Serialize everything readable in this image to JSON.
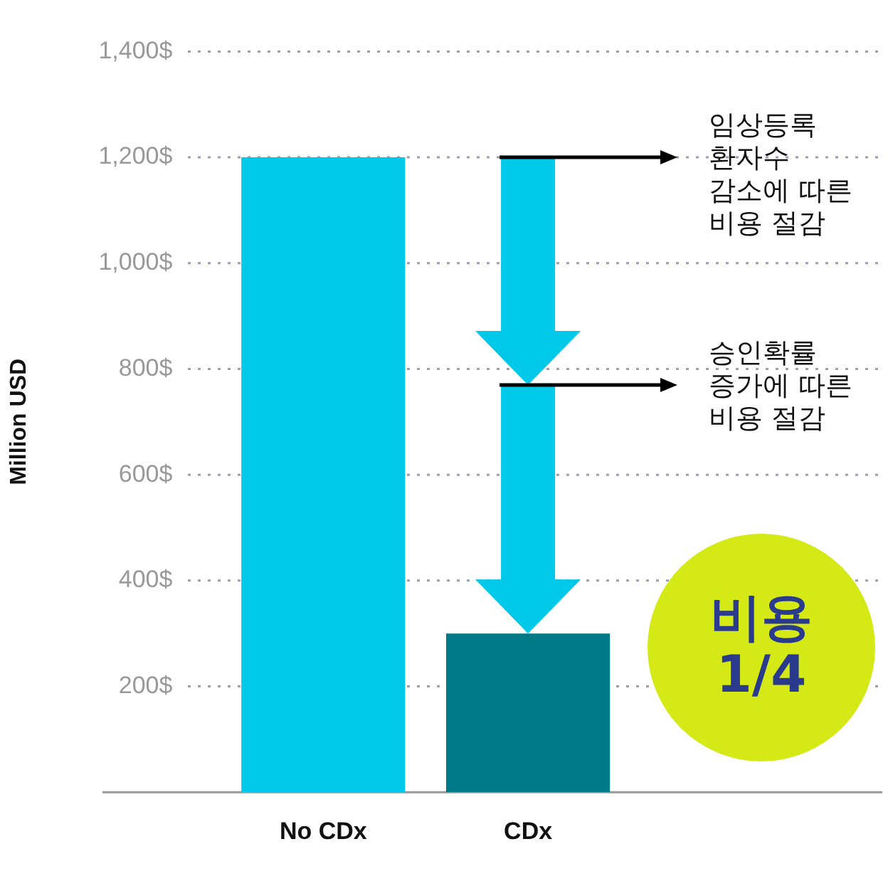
{
  "chart_data": {
    "type": "bar",
    "ylabel": "Million USD",
    "categories": [
      "No CDx",
      "CDx"
    ],
    "values": [
      1200,
      300
    ],
    "colors": [
      "#00c8e8",
      "#007a87"
    ],
    "ylim": [
      0,
      1400
    ],
    "yticks": [
      {
        "value": 200,
        "label": "200$"
      },
      {
        "value": 400,
        "label": "400$"
      },
      {
        "value": 600,
        "label": "600$"
      },
      {
        "value": 800,
        "label": "800$"
      },
      {
        "value": 1000,
        "label": "1,000$"
      },
      {
        "value": 1200,
        "label": "1,200$"
      },
      {
        "value": 1400,
        "label": "1,400$"
      }
    ],
    "grid": "y",
    "legend": false,
    "annotations": [
      "임상등록\n환자수\n감소에 따른\n비용 절감",
      "승인확률\n증가에 따른\n비용 절감",
      "비용\n1/4"
    ]
  }
}
